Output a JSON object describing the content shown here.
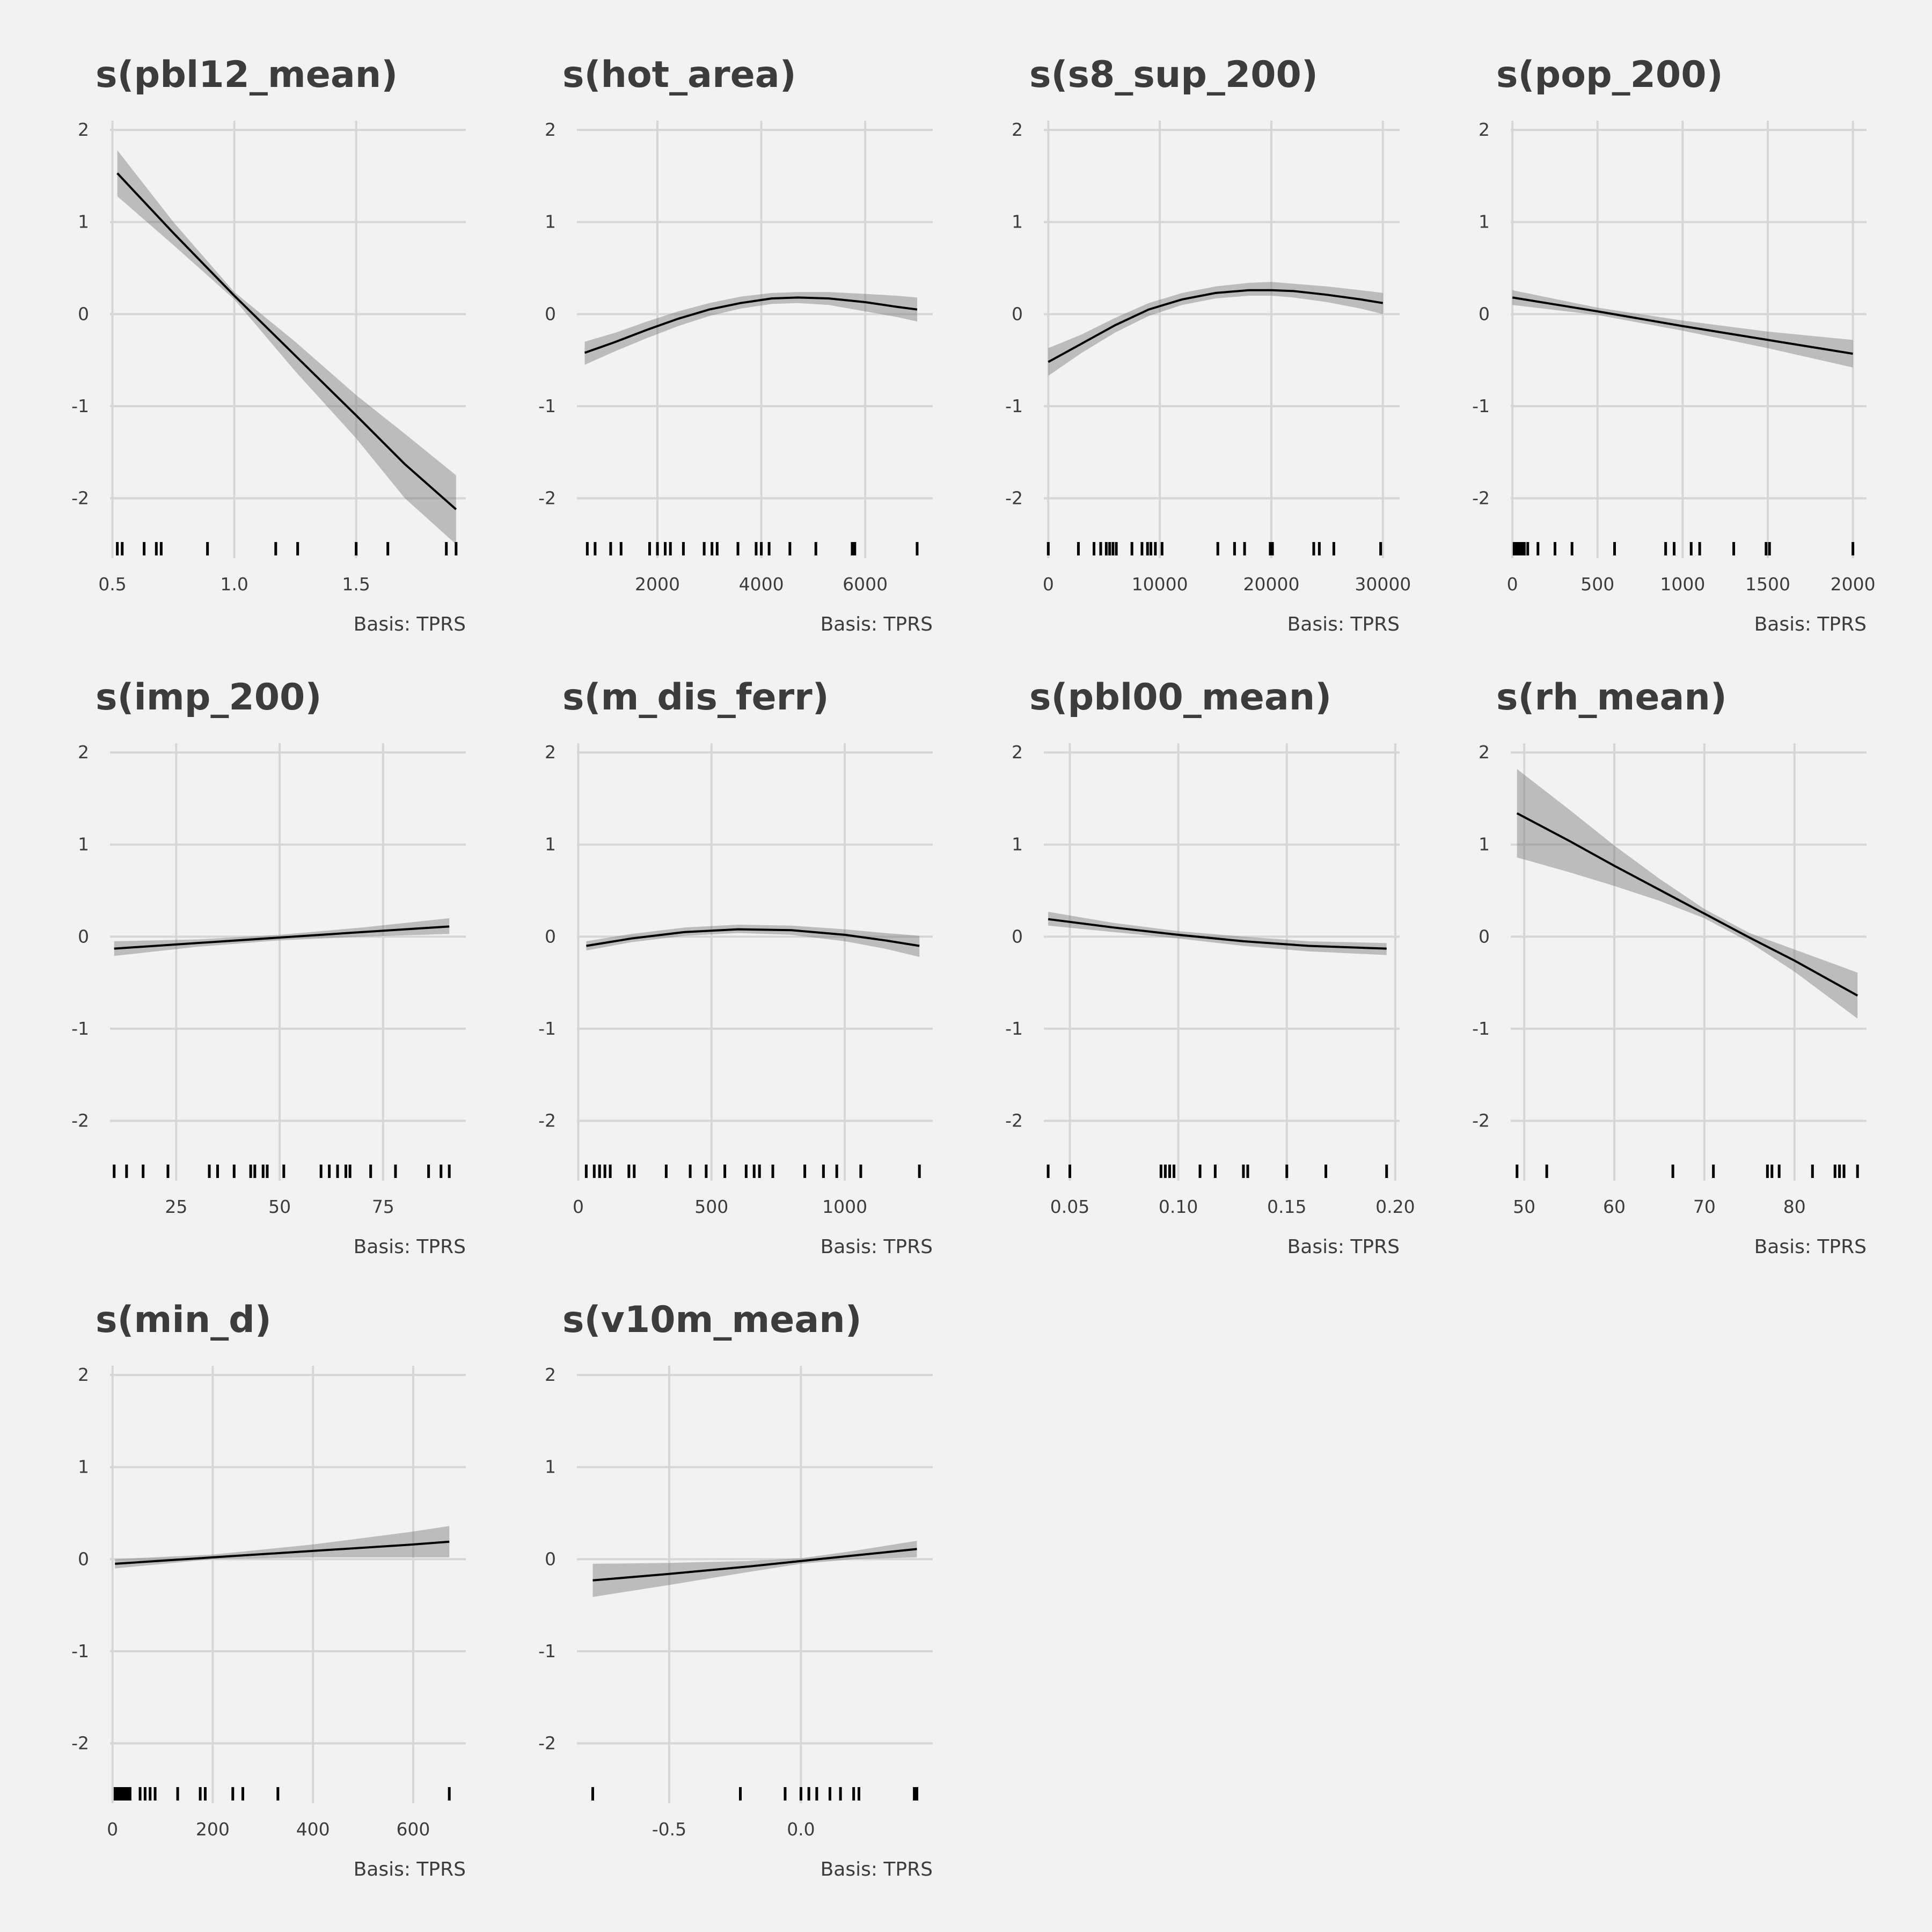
{
  "chart_data": [
    {
      "type": "line",
      "title": "s(pbl12_mean)",
      "caption": "Basis: TPRS",
      "xlim": [
        0.49,
        1.95
      ],
      "ylim": [
        -2.65,
        2.1
      ],
      "x_ticks": [
        0.5,
        1.0,
        1.5
      ],
      "x_tick_labels": [
        "0.5",
        "1.0",
        "1.5"
      ],
      "y_ticks": [
        2,
        1,
        0,
        -1,
        -2
      ],
      "y_tick_labels": [
        "2",
        "1",
        "0",
        "-1",
        "-2"
      ],
      "x": [
        0.52,
        0.75,
        1.0,
        1.25,
        1.5,
        1.7,
        1.91
      ],
      "y": [
        1.53,
        0.88,
        0.2,
        -0.45,
        -1.1,
        -1.63,
        -2.12
      ],
      "lower": [
        1.28,
        0.75,
        0.16,
        -0.62,
        -1.35,
        -2.0,
        -2.5
      ],
      "upper": [
        1.78,
        1.0,
        0.24,
        -0.3,
        -0.88,
        -1.3,
        -1.75
      ],
      "rug": [
        0.52,
        0.54,
        0.63,
        0.68,
        0.7,
        0.89,
        1.17,
        1.26,
        1.5,
        1.63,
        1.87,
        1.91
      ],
      "grid": true
    },
    {
      "type": "line",
      "title": "s(hot_area)",
      "caption": "Basis: TPRS",
      "xlim": [
        450,
        7300
      ],
      "ylim": [
        -2.65,
        2.1
      ],
      "x_ticks": [
        2000,
        4000,
        6000
      ],
      "x_tick_labels": [
        "2000",
        "4000",
        "6000"
      ],
      "y_ticks": [
        2,
        1,
        0,
        -1,
        -2
      ],
      "y_tick_labels": [
        "2",
        "1",
        "0",
        "-1",
        "-2"
      ],
      "x": [
        600,
        1200,
        1800,
        2400,
        3000,
        3600,
        4200,
        4700,
        5300,
        6000,
        6600,
        7000
      ],
      "y": [
        -0.42,
        -0.3,
        -0.17,
        -0.05,
        0.05,
        0.12,
        0.17,
        0.18,
        0.17,
        0.13,
        0.08,
        0.05
      ],
      "lower": [
        -0.55,
        -0.4,
        -0.26,
        -0.13,
        -0.02,
        0.06,
        0.11,
        0.12,
        0.1,
        0.03,
        -0.03,
        -0.08
      ],
      "upper": [
        -0.3,
        -0.2,
        -0.08,
        0.03,
        0.12,
        0.19,
        0.23,
        0.24,
        0.24,
        0.22,
        0.2,
        0.18
      ],
      "rug": [
        650,
        800,
        1100,
        1300,
        1850,
        2000,
        2150,
        2250,
        2500,
        2900,
        3050,
        3150,
        3550,
        3900,
        4000,
        4150,
        4550,
        5050,
        5750,
        5800,
        7000
      ],
      "grid": true
    },
    {
      "type": "line",
      "title": "s(s8_sup_200)",
      "caption": "Basis: TPRS",
      "xlim": [
        -400,
        31500
      ],
      "ylim": [
        -2.65,
        2.1
      ],
      "x_ticks": [
        0,
        10000,
        20000,
        30000
      ],
      "x_tick_labels": [
        "0",
        "10000",
        "20000",
        "30000"
      ],
      "y_ticks": [
        2,
        1,
        0,
        -1,
        -2
      ],
      "y_tick_labels": [
        "2",
        "1",
        "0",
        "-1",
        "-2"
      ],
      "x": [
        0,
        3000,
        6000,
        9000,
        12000,
        15000,
        18000,
        20000,
        22000,
        25000,
        28000,
        30000
      ],
      "y": [
        -0.52,
        -0.32,
        -0.12,
        0.05,
        0.16,
        0.23,
        0.26,
        0.26,
        0.25,
        0.21,
        0.16,
        0.12
      ],
      "lower": [
        -0.67,
        -0.42,
        -0.2,
        -0.02,
        0.1,
        0.17,
        0.2,
        0.2,
        0.18,
        0.13,
        0.06,
        0.0
      ],
      "upper": [
        -0.37,
        -0.22,
        -0.04,
        0.12,
        0.23,
        0.3,
        0.34,
        0.35,
        0.33,
        0.3,
        0.26,
        0.23
      ],
      "rug": [
        0,
        2700,
        4100,
        4700,
        5200,
        5500,
        5800,
        6100,
        7500,
        8400,
        8900,
        9200,
        9600,
        10200,
        15200,
        16700,
        17600,
        19900,
        20100,
        23800,
        24300,
        25600,
        29800
      ],
      "grid": true
    },
    {
      "type": "line",
      "title": "s(pop_200)",
      "caption": "Basis: TPRS",
      "xlim": [
        -10,
        2080
      ],
      "ylim": [
        -2.65,
        2.1
      ],
      "x_ticks": [
        0,
        500,
        1000,
        1500,
        2000
      ],
      "x_tick_labels": [
        "0",
        "500",
        "1000",
        "1500",
        "2000"
      ],
      "y_ticks": [
        2,
        1,
        0,
        -1,
        -2
      ],
      "y_tick_labels": [
        "2",
        "1",
        "0",
        "-1",
        "-2"
      ],
      "x": [
        0,
        500,
        1000,
        1500,
        2000
      ],
      "y": [
        0.18,
        0.03,
        -0.13,
        -0.28,
        -0.43
      ],
      "lower": [
        0.1,
        -0.01,
        -0.18,
        -0.37,
        -0.58
      ],
      "upper": [
        0.26,
        0.07,
        -0.07,
        -0.19,
        -0.28
      ],
      "rug": [
        10,
        20,
        30,
        40,
        55,
        70,
        90,
        150,
        250,
        350,
        600,
        900,
        950,
        1050,
        1100,
        1300,
        1490,
        1510,
        2000
      ],
      "grid": true
    },
    {
      "type": "line",
      "title": "s(imp_200)",
      "caption": "Basis: TPRS",
      "xlim": [
        9,
        95
      ],
      "ylim": [
        -2.65,
        2.1
      ],
      "x_ticks": [
        25,
        50,
        75
      ],
      "x_tick_labels": [
        "25",
        "50",
        "75"
      ],
      "y_ticks": [
        2,
        1,
        0,
        -1,
        -2
      ],
      "y_tick_labels": [
        "2",
        "1",
        "0",
        "-1",
        "-2"
      ],
      "x": [
        10,
        30,
        50,
        70,
        91
      ],
      "y": [
        -0.13,
        -0.07,
        -0.01,
        0.05,
        0.11
      ],
      "lower": [
        -0.21,
        -0.11,
        -0.04,
        0.0,
        0.03
      ],
      "upper": [
        -0.05,
        -0.03,
        0.02,
        0.1,
        0.2
      ],
      "rug": [
        10,
        13,
        17,
        23,
        33,
        35,
        39,
        43,
        44,
        46,
        47,
        51,
        60,
        62,
        64,
        66,
        67,
        72,
        78,
        86,
        89,
        91
      ],
      "grid": true
    },
    {
      "type": "line",
      "title": "s(m_dis_ferr)",
      "caption": "Basis: TPRS",
      "xlim": [
        -5,
        1330
      ],
      "ylim": [
        -2.65,
        2.1
      ],
      "x_ticks": [
        0,
        500,
        1000
      ],
      "x_tick_labels": [
        "0",
        "500",
        "1000"
      ],
      "y_ticks": [
        2,
        1,
        0,
        -1,
        -2
      ],
      "y_tick_labels": [
        "2",
        "1",
        "0",
        "-1",
        "-2"
      ],
      "x": [
        30,
        200,
        400,
        600,
        800,
        1000,
        1150,
        1280
      ],
      "y": [
        -0.1,
        -0.02,
        0.05,
        0.08,
        0.07,
        0.02,
        -0.04,
        -0.1
      ],
      "lower": [
        -0.15,
        -0.06,
        0.01,
        0.04,
        0.02,
        -0.05,
        -0.13,
        -0.22
      ],
      "upper": [
        -0.05,
        0.03,
        0.1,
        0.13,
        0.12,
        0.08,
        0.04,
        0.01
      ],
      "rug": [
        30,
        60,
        80,
        100,
        120,
        190,
        210,
        330,
        420,
        480,
        550,
        630,
        660,
        680,
        730,
        850,
        920,
        970,
        1060,
        1280
      ],
      "grid": true
    },
    {
      "type": "line",
      "title": "s(pbl00_mean)",
      "caption": "Basis: TPRS",
      "xlim": [
        0.038,
        0.202
      ],
      "ylim": [
        -2.65,
        2.1
      ],
      "x_ticks": [
        0.05,
        0.1,
        0.15,
        0.2
      ],
      "x_tick_labels": [
        "0.05",
        "0.10",
        "0.15",
        "0.20"
      ],
      "y_ticks": [
        2,
        1,
        0,
        -1,
        -2
      ],
      "y_tick_labels": [
        "2",
        "1",
        "0",
        "-1",
        "-2"
      ],
      "x": [
        0.04,
        0.07,
        0.1,
        0.13,
        0.16,
        0.196
      ],
      "y": [
        0.19,
        0.1,
        0.02,
        -0.05,
        -0.1,
        -0.13
      ],
      "lower": [
        0.12,
        0.05,
        -0.02,
        -0.1,
        -0.16,
        -0.2
      ],
      "upper": [
        0.27,
        0.15,
        0.06,
        0.0,
        -0.05,
        -0.07
      ],
      "rug": [
        0.04,
        0.05,
        0.092,
        0.094,
        0.096,
        0.098,
        0.11,
        0.117,
        0.13,
        0.132,
        0.15,
        0.168,
        0.196
      ],
      "grid": true
    },
    {
      "type": "line",
      "title": "s(rh_mean)",
      "caption": "Basis: TPRS",
      "xlim": [
        48.5,
        88
      ],
      "ylim": [
        -2.65,
        2.1
      ],
      "x_ticks": [
        50,
        60,
        70,
        80
      ],
      "x_tick_labels": [
        "50",
        "60",
        "70",
        "80"
      ],
      "y_ticks": [
        2,
        1,
        0,
        -1,
        -2
      ],
      "y_tick_labels": [
        "2",
        "1",
        "0",
        "-1",
        "-2"
      ],
      "x": [
        49.2,
        55,
        60,
        65,
        70,
        75,
        80,
        87
      ],
      "y": [
        1.34,
        1.04,
        0.77,
        0.51,
        0.25,
        -0.01,
        -0.26,
        -0.64
      ],
      "lower": [
        0.86,
        0.7,
        0.55,
        0.39,
        0.2,
        -0.06,
        -0.38,
        -0.89
      ],
      "upper": [
        1.82,
        1.38,
        0.99,
        0.63,
        0.3,
        0.04,
        -0.14,
        -0.39
      ],
      "rug": [
        49.2,
        52.5,
        66.5,
        71,
        77,
        77.5,
        78.3,
        82,
        84.5,
        85,
        85.5,
        87
      ],
      "grid": true
    },
    {
      "type": "line",
      "title": "s(min_d)",
      "caption": "Basis: TPRS",
      "xlim": [
        -5,
        705
      ],
      "ylim": [
        -2.65,
        2.1
      ],
      "x_ticks": [
        0,
        200,
        400,
        600
      ],
      "x_tick_labels": [
        "0",
        "200",
        "400",
        "600"
      ],
      "y_ticks": [
        2,
        1,
        0,
        -1,
        -2
      ],
      "y_tick_labels": [
        "2",
        "1",
        "0",
        "-1",
        "-2"
      ],
      "x": [
        5,
        200,
        400,
        600,
        672
      ],
      "y": [
        -0.05,
        0.02,
        0.09,
        0.16,
        0.19
      ],
      "lower": [
        -0.1,
        0.0,
        0.02,
        0.02,
        0.02
      ],
      "upper": [
        0.0,
        0.05,
        0.16,
        0.3,
        0.36
      ],
      "rug": [
        5,
        10,
        15,
        20,
        25,
        30,
        35,
        55,
        65,
        75,
        85,
        130,
        175,
        185,
        240,
        260,
        330,
        672
      ],
      "grid": true
    },
    {
      "type": "line",
      "title": "s(v10m_mean)",
      "caption": "Basis: TPRS",
      "xlim": [
        -0.85,
        0.5
      ],
      "ylim": [
        -2.65,
        2.1
      ],
      "x_ticks": [
        -0.5,
        0.0
      ],
      "x_tick_labels": [
        "-0.5",
        "0.0"
      ],
      "y_ticks": [
        2,
        1,
        0,
        -1,
        -2
      ],
      "y_tick_labels": [
        "2",
        "1",
        "0",
        "-1",
        "-2"
      ],
      "x": [
        -0.79,
        -0.5,
        -0.2,
        0.0,
        0.2,
        0.44
      ],
      "y": [
        -0.23,
        -0.16,
        -0.08,
        -0.02,
        0.04,
        0.11
      ],
      "lower": [
        -0.41,
        -0.28,
        -0.14,
        -0.05,
        0.0,
        0.02
      ],
      "upper": [
        -0.05,
        -0.04,
        -0.02,
        0.01,
        0.09,
        0.2
      ],
      "rug": [
        -0.79,
        -0.23,
        -0.06,
        0.0,
        0.03,
        0.06,
        0.11,
        0.15,
        0.2,
        0.22,
        0.43,
        0.44
      ],
      "grid": true
    }
  ]
}
